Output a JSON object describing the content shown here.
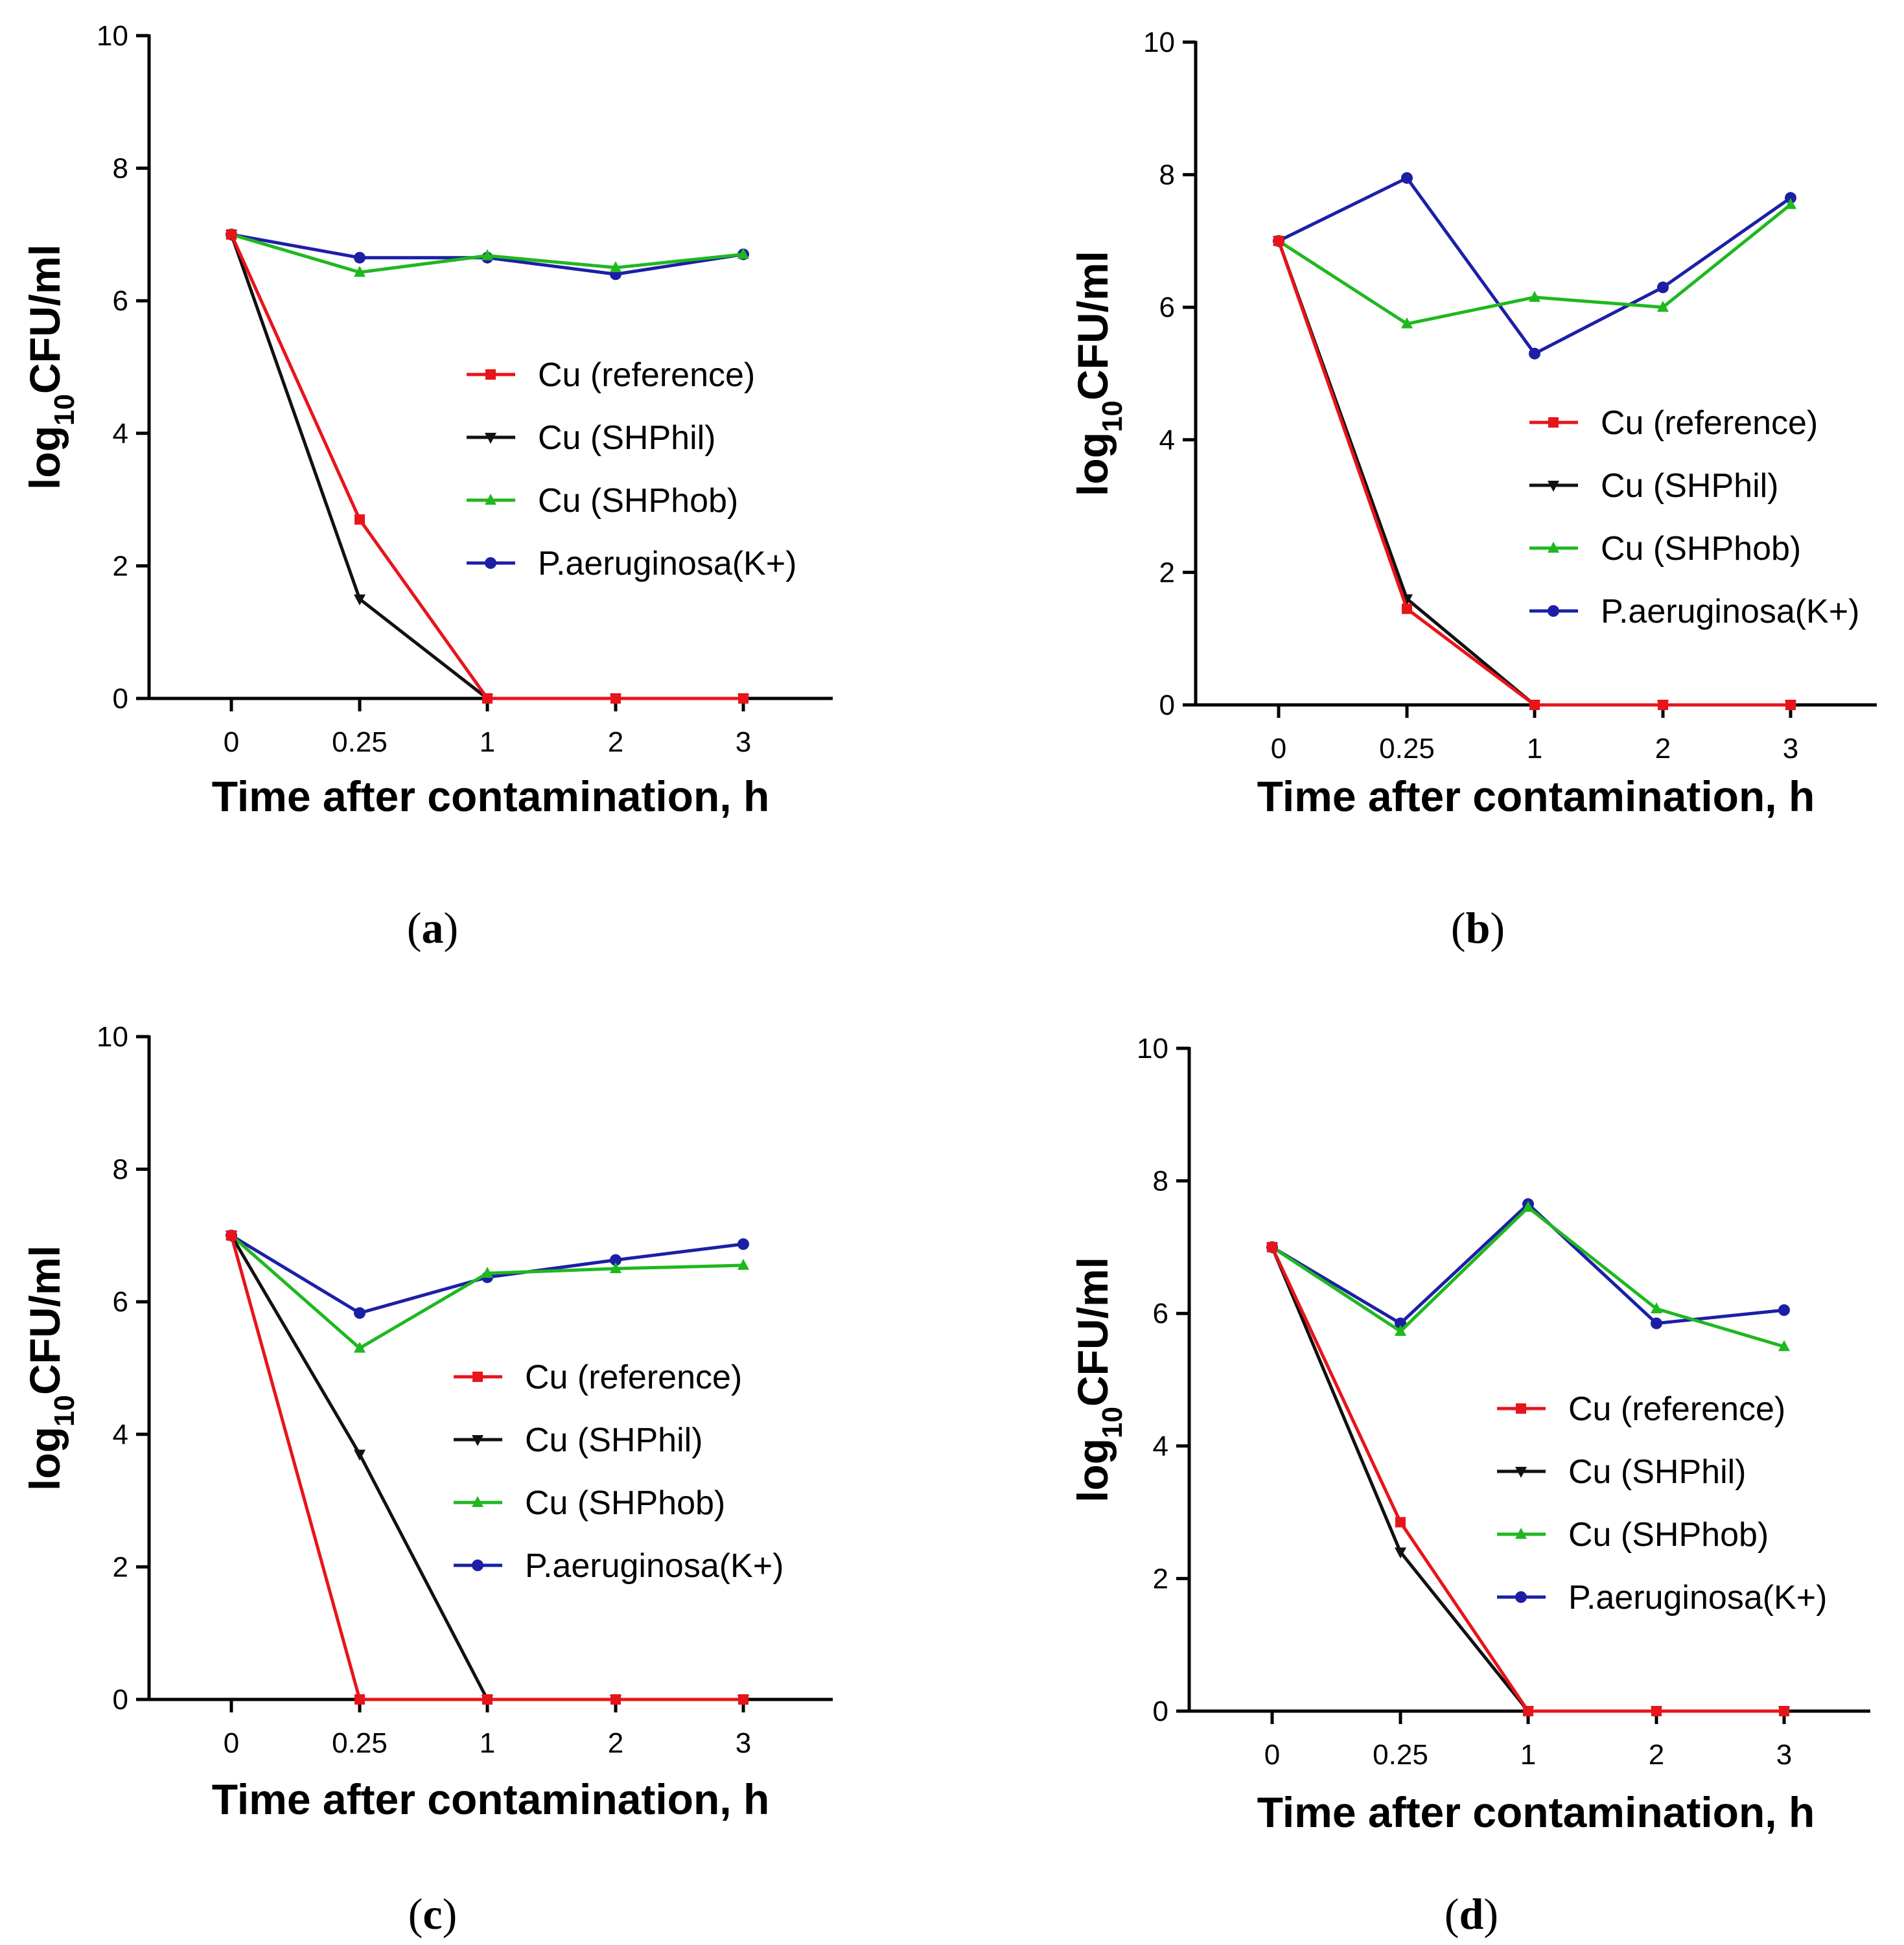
{
  "colors": {
    "Cu (reference)": "#e8141b",
    "Cu (SHPhil)": "#111111",
    "Cu (SHPhob)": "#1fb81f",
    "P.aeruginosa(K+)": "#1c1fa6"
  },
  "chart_data": [
    {
      "panel": "a",
      "panel_label": [
        "(",
        "a",
        ")"
      ],
      "type": "line",
      "xlabel": "Time after contamination, h",
      "ylabel": "log10CFU/ml",
      "ylabel_parts": [
        "log",
        "10",
        "CFU/ml"
      ],
      "ylim": [
        0,
        10
      ],
      "y_ticks": [
        "0",
        "2",
        "4",
        "6",
        "8",
        "10"
      ],
      "categories": [
        "0",
        "0.25",
        "1",
        "2",
        "3"
      ],
      "legend_position": "center-right",
      "series": [
        {
          "name": "Cu (reference)",
          "values": [
            7.0,
            2.7,
            0,
            0,
            0
          ]
        },
        {
          "name": "Cu (SHPhil)",
          "values": [
            7.0,
            1.5,
            0,
            0,
            0
          ]
        },
        {
          "name": "Cu (SHPhob)",
          "values": [
            7.0,
            6.43,
            6.68,
            6.5,
            6.7
          ]
        },
        {
          "name": "P.aeruginosa(K+)",
          "values": [
            7.0,
            6.65,
            6.65,
            6.4,
            6.7
          ]
        }
      ]
    },
    {
      "panel": "b",
      "panel_label": [
        "(",
        "b",
        ")"
      ],
      "type": "line",
      "xlabel": "Time after contamination, h",
      "ylabel": "log10CFU/ml",
      "ylabel_parts": [
        "log",
        "10",
        "CFU/ml"
      ],
      "ylim": [
        0,
        10
      ],
      "y_ticks": [
        "0",
        "2",
        "4",
        "6",
        "8",
        "10"
      ],
      "categories": [
        "0",
        "0.25",
        "1",
        "2",
        "3"
      ],
      "legend_position": "center-right",
      "series": [
        {
          "name": "Cu (reference)",
          "values": [
            7.0,
            1.45,
            0,
            0,
            0
          ]
        },
        {
          "name": "Cu (SHPhil)",
          "values": [
            7.0,
            1.6,
            0,
            0,
            0
          ]
        },
        {
          "name": "Cu (SHPhob)",
          "values": [
            7.0,
            5.75,
            6.15,
            6.0,
            7.55
          ]
        },
        {
          "name": "P.aeruginosa(K+)",
          "values": [
            7.0,
            7.95,
            5.3,
            6.3,
            7.65
          ]
        }
      ]
    },
    {
      "panel": "c",
      "panel_label": [
        "(",
        "c",
        ")"
      ],
      "type": "line",
      "xlabel": "Time after contamination, h",
      "ylabel": "log10CFU/ml",
      "ylabel_parts": [
        "log",
        "10",
        "CFU/ml"
      ],
      "ylim": [
        0,
        10
      ],
      "y_ticks": [
        "0",
        "2",
        "4",
        "6",
        "8",
        "10"
      ],
      "categories": [
        "0",
        "0.25",
        "1",
        "2",
        "3"
      ],
      "legend_position": "center-right",
      "series": [
        {
          "name": "Cu (reference)",
          "values": [
            7.0,
            0,
            0,
            0,
            0
          ]
        },
        {
          "name": "Cu (SHPhil)",
          "values": [
            7.0,
            3.7,
            0,
            0,
            0
          ]
        },
        {
          "name": "Cu (SHPhob)",
          "values": [
            7.0,
            5.3,
            6.43,
            6.5,
            6.55
          ]
        },
        {
          "name": "P.aeruginosa(K+)",
          "values": [
            7.0,
            5.83,
            6.37,
            6.63,
            6.87
          ]
        }
      ]
    },
    {
      "panel": "d",
      "panel_label": [
        "(",
        "d",
        ")"
      ],
      "type": "line",
      "xlabel": "Time after contamination, h",
      "ylabel": "log10CFU/ml",
      "ylabel_parts": [
        "log",
        "10",
        "CFU/ml"
      ],
      "ylim": [
        0,
        10
      ],
      "y_ticks": [
        "0",
        "2",
        "4",
        "6",
        "8",
        "10"
      ],
      "categories": [
        "0",
        "0.25",
        "1",
        "2",
        "3"
      ],
      "legend_position": "center-right",
      "series": [
        {
          "name": "Cu (reference)",
          "values": [
            7.0,
            2.85,
            0,
            0,
            0
          ]
        },
        {
          "name": "Cu (SHPhil)",
          "values": [
            7.0,
            2.4,
            0,
            0,
            0
          ]
        },
        {
          "name": "Cu (SHPhob)",
          "values": [
            7.0,
            5.73,
            7.6,
            6.07,
            5.5
          ]
        },
        {
          "name": "P.aeruginosa(K+)",
          "values": [
            7.0,
            5.85,
            7.65,
            5.85,
            6.05
          ]
        }
      ]
    }
  ]
}
